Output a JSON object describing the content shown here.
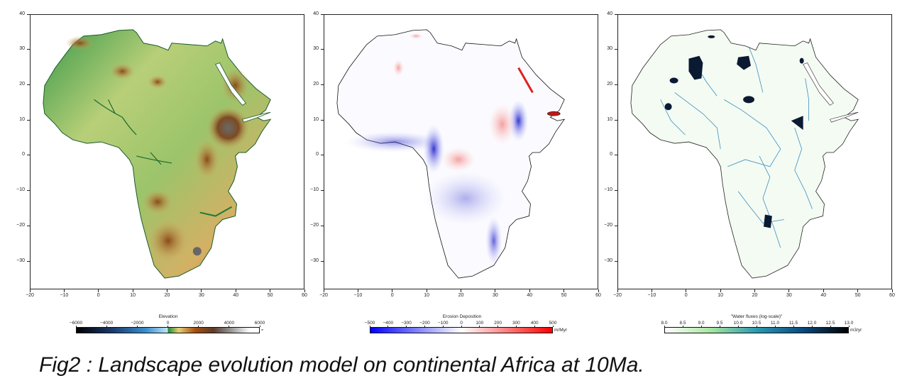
{
  "figure": {
    "caption": "Fig2 : Landscape evolution model on continental Africa at 10Ma."
  },
  "axes": {
    "xticks": [
      "−20",
      "−10",
      "0",
      "10",
      "20",
      "30",
      "40",
      "50",
      "60"
    ],
    "yticks": [
      "40",
      "30",
      "20",
      "10",
      "0",
      "−10",
      "−20",
      "−30"
    ],
    "xlim": [
      -20,
      60
    ],
    "ylim": [
      -38,
      40
    ]
  },
  "panels": [
    {
      "name": "elevation",
      "colorbar": {
        "title": "Elevation",
        "ticks": [
          "−6000",
          "−4000",
          "−2000",
          "0",
          "2000",
          "4000",
          "6000"
        ],
        "unit": "m",
        "range": [
          -6000,
          6000
        ],
        "colors": [
          "#000000",
          "#1a3b6e",
          "#3a8ecf",
          "#bfe6f5",
          "#1e8a3a",
          "#e7cf77",
          "#a44f10",
          "#5b3b2a",
          "#9a9a9a",
          "#ffffff"
        ]
      },
      "colors": {
        "land_low": "#2e8b3a",
        "land_mid": "#c9d37a",
        "land_high": "#a0521c",
        "peak": "#6a6a6a"
      }
    },
    {
      "name": "erosion-deposition",
      "colorbar": {
        "title": "Erosion Deposition",
        "ticks": [
          "−500",
          "−400",
          "−300",
          "−200",
          "−100",
          "0",
          "100",
          "200",
          "300",
          "400",
          "500"
        ],
        "unit": "m/Myr",
        "range": [
          -500,
          500
        ],
        "colors": [
          "#0000ff",
          "#ffffff",
          "#ff0000"
        ]
      },
      "colors": {
        "erosion": "#2a2ad8",
        "deposition": "#f08a8a"
      }
    },
    {
      "name": "water-fluxes",
      "colorbar": {
        "title": "\"Water fluxes (log-scale)\"",
        "ticks": [
          "8.0",
          "8.5",
          "9.0",
          "9.5",
          "10.0",
          "10.5",
          "11.0",
          "11.5",
          "12.0",
          "12.5",
          "13.0"
        ],
        "unit": "m3/yr",
        "range": [
          8,
          13
        ],
        "colors": [
          "#ffffff",
          "#a8e6a0",
          "#2a9ab0",
          "#0a4a80",
          "#000000"
        ]
      },
      "colors": {
        "river": "#2c7fb8",
        "lake": "#0b1a33",
        "land": "#f3fbf3"
      }
    }
  ]
}
